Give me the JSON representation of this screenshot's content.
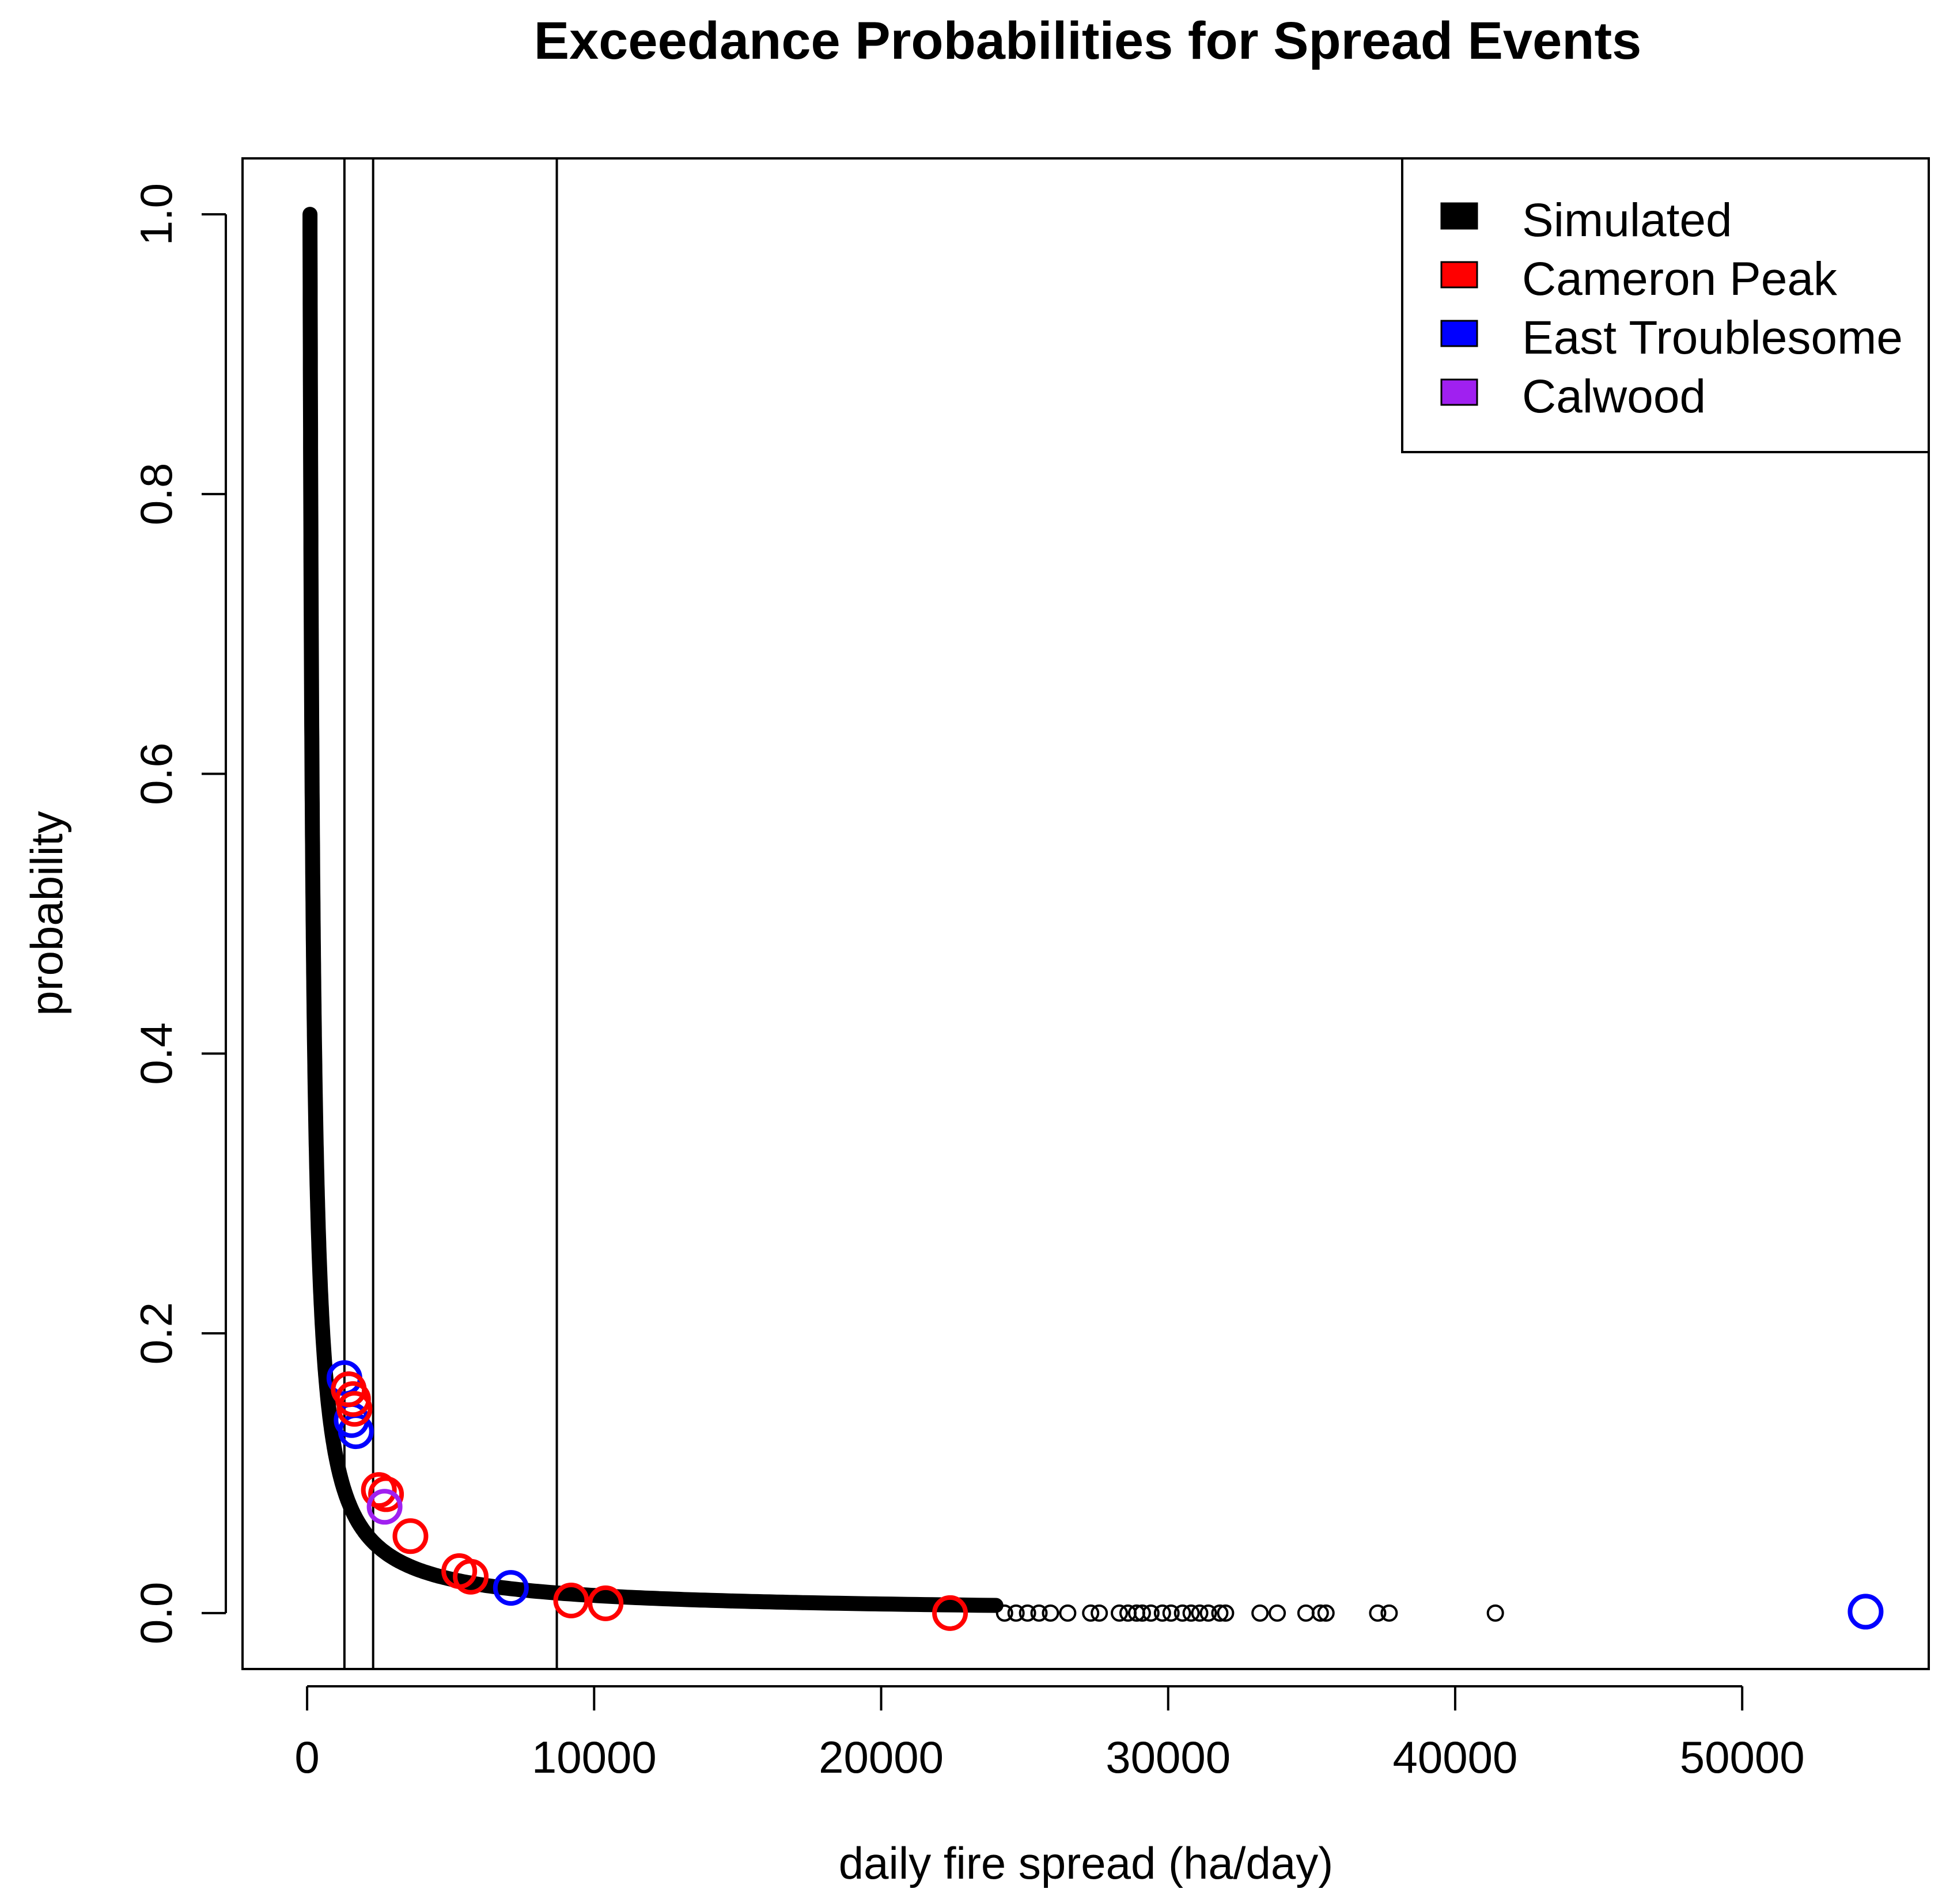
{
  "chart_data": {
    "type": "scatter",
    "title": "Exceedance Probabilities for Spread Events",
    "xlabel": "daily fire spread (ha/day)",
    "ylabel": "probability",
    "xlim": [
      -2250,
      56500
    ],
    "ylim": [
      -0.04,
      1.04
    ],
    "xticks": [
      0,
      10000,
      20000,
      30000,
      40000,
      50000
    ],
    "xtick_labels": [
      "0",
      "10000",
      "20000",
      "30000",
      "40000",
      "50000"
    ],
    "yticks": [
      0.0,
      0.2,
      0.4,
      0.6,
      0.8,
      1.0
    ],
    "ytick_labels": [
      "0.0",
      "0.2",
      "0.4",
      "0.6",
      "0.8",
      "1.0"
    ],
    "vlines": [
      1300,
      2300,
      8700
    ],
    "legend_position": "top-right",
    "series": [
      {
        "name": "Simulated",
        "color": "#000000",
        "curve": {
          "model": "power-law",
          "x_min": 100,
          "x_max": 24000,
          "alpha": 0.95
        },
        "tail_points": {
          "x": [
            24300,
            24700,
            25100,
            25500,
            25900,
            26500,
            27300,
            27600,
            28300,
            28600,
            28900,
            29100,
            29400,
            29800,
            30100,
            30500,
            30800,
            31100,
            31400,
            31800,
            32000,
            33200,
            33800,
            34800,
            35300,
            35500,
            37300,
            37700,
            41400
          ],
          "y": [
            0,
            0,
            0,
            0,
            0,
            0,
            0,
            0,
            0,
            0,
            0,
            0,
            0,
            0,
            0,
            0,
            0,
            0,
            0,
            0,
            0,
            0,
            0,
            0,
            0,
            0,
            0,
            0,
            0
          ]
        }
      },
      {
        "name": "Cameron Peak",
        "color": "#ff0000",
        "x": [
          1450,
          1600,
          1650,
          2500,
          2750,
          3600,
          5300,
          5700,
          9200,
          10400,
          22400
        ],
        "y": [
          0.16,
          0.153,
          0.146,
          0.088,
          0.085,
          0.055,
          0.03,
          0.026,
          0.009,
          0.007,
          0.0
        ]
      },
      {
        "name": "East Troublesome",
        "color": "#0000ff",
        "x": [
          1300,
          1450,
          1550,
          1700,
          7100,
          54300
        ],
        "y": [
          0.168,
          0.16,
          0.138,
          0.13,
          0.018,
          0.001
        ]
      },
      {
        "name": "Calwood",
        "color": "#a020f0",
        "x": [
          2700
        ],
        "y": [
          0.076
        ]
      }
    ]
  }
}
